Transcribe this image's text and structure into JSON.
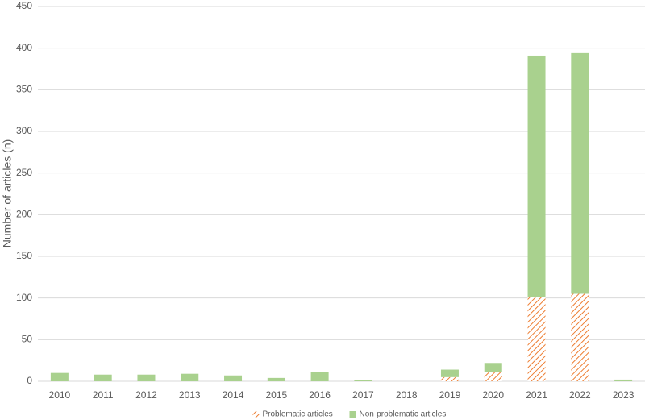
{
  "chart_data": {
    "type": "stacked_bar",
    "y_label": "Number of articles (n)",
    "categories": [
      "2010",
      "2011",
      "2012",
      "2013",
      "2014",
      "2015",
      "2016",
      "2017",
      "2018",
      "2019",
      "2020",
      "2021",
      "2022",
      "2023"
    ],
    "series": [
      {
        "name": "Problematic articles",
        "color": "#ed7d31",
        "pattern": "hatch",
        "values": [
          0,
          0,
          0,
          0,
          0,
          0,
          0,
          0,
          0,
          5,
          11,
          101,
          105,
          0
        ]
      },
      {
        "name": "Non-problematic articles",
        "color": "#a9d18e",
        "values": [
          10,
          8,
          8,
          9,
          7,
          4,
          11,
          1,
          0,
          9,
          11,
          290,
          289,
          2
        ]
      }
    ],
    "ylim": [
      0,
      450
    ],
    "yticks": [
      0,
      50,
      100,
      150,
      200,
      250,
      300,
      350,
      400,
      450
    ],
    "grid": true,
    "legend": "bottom"
  }
}
